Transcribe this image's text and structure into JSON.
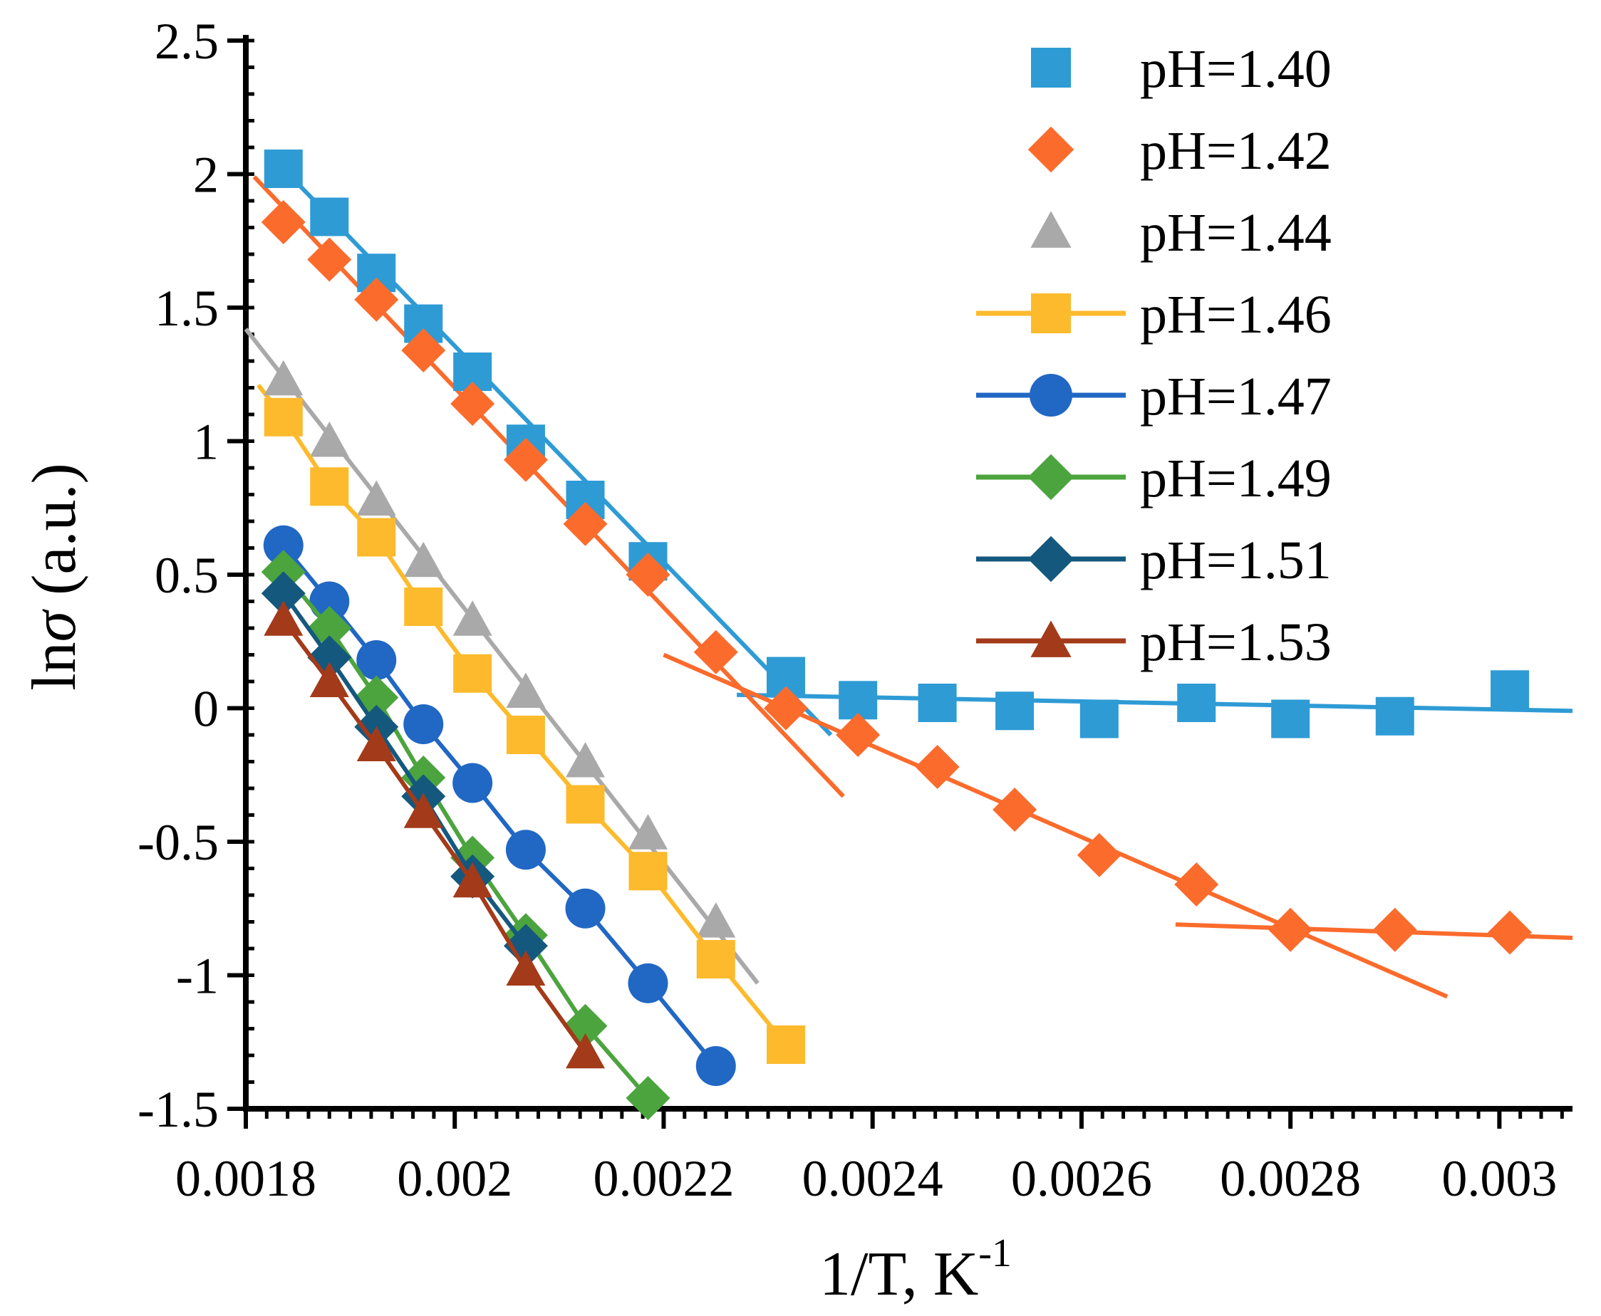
{
  "chart_data": {
    "type": "scatter",
    "xlabel": "1/T, K",
    "xlabel_sup": "-1",
    "ylabel_prefix": "ln",
    "ylabel_symbol": "σ",
    "ylabel_suffix": " (a.u.)",
    "xlim": [
      0.0018,
      0.00307
    ],
    "ylim": [
      -1.5,
      2.5
    ],
    "xticks": [
      "0.0018",
      "0.002",
      "0.0022",
      "0.0024",
      "0.0026",
      "0.0028",
      "0.003"
    ],
    "xtick_values": [
      0.0018,
      0.002,
      0.0022,
      0.0024,
      0.0026,
      0.0028,
      0.003
    ],
    "yticks": [
      "2.5",
      "2",
      "1.5",
      "1",
      "0.5",
      "0",
      "-0.5",
      "-1",
      "-1.5"
    ],
    "ytick_values": [
      2.5,
      2.0,
      1.5,
      1.0,
      0.5,
      0.0,
      -0.5,
      -1.0,
      -1.5
    ],
    "grid": false,
    "legend_position": "top-right",
    "series": [
      {
        "name": "pH=1.40",
        "marker": "square",
        "color": "#2E9BD5",
        "connect": false,
        "x": [
          0.001836,
          0.00188,
          0.001925,
          0.00197,
          0.002017,
          0.002068,
          0.002125,
          0.002185,
          0.002317,
          0.002386,
          0.002462,
          0.002536,
          0.002617,
          0.00271,
          0.0028,
          0.0029,
          0.00301
        ],
        "y": [
          2.02,
          1.84,
          1.63,
          1.44,
          1.26,
          0.99,
          0.78,
          0.55,
          0.12,
          0.03,
          0.02,
          -0.01,
          -0.04,
          0.02,
          -0.04,
          -0.03,
          0.07
        ]
      },
      {
        "name": "pH=1.42",
        "marker": "diamond",
        "color": "#FB6B2C",
        "connect": false,
        "x": [
          0.001836,
          0.00188,
          0.001925,
          0.00197,
          0.002017,
          0.002068,
          0.002125,
          0.002185,
          0.00225,
          0.002317,
          0.002386,
          0.002462,
          0.002536,
          0.002617,
          0.00271,
          0.0028,
          0.0029,
          0.00301
        ],
        "y": [
          1.82,
          1.68,
          1.53,
          1.34,
          1.14,
          0.93,
          0.69,
          0.5,
          0.21,
          0.0,
          -0.1,
          -0.22,
          -0.38,
          -0.55,
          -0.66,
          -0.83,
          -0.83,
          -0.84
        ]
      },
      {
        "name": "pH=1.44",
        "marker": "triangle",
        "color": "#A9A9A9",
        "connect": false,
        "x": [
          0.001836,
          0.00188,
          0.001925,
          0.00197,
          0.002017,
          0.002068,
          0.002125,
          0.002185,
          0.00225
        ],
        "y": [
          1.23,
          1.0,
          0.78,
          0.55,
          0.33,
          0.06,
          -0.2,
          -0.47,
          -0.8
        ]
      },
      {
        "name": "pH=1.46",
        "marker": "square",
        "color": "#FDBA2C",
        "connect": true,
        "x": [
          0.001836,
          0.00188,
          0.001925,
          0.00197,
          0.002017,
          0.002068,
          0.002125,
          0.002185,
          0.00225,
          0.002317
        ],
        "y": [
          1.09,
          0.83,
          0.64,
          0.38,
          0.13,
          -0.1,
          -0.36,
          -0.61,
          -0.94,
          -1.26
        ]
      },
      {
        "name": "pH=1.47",
        "marker": "circle",
        "color": "#2167C4",
        "connect": true,
        "x": [
          0.001836,
          0.00188,
          0.001925,
          0.00197,
          0.002017,
          0.002068,
          0.002125,
          0.002185,
          0.00225
        ],
        "y": [
          0.61,
          0.4,
          0.18,
          -0.06,
          -0.28,
          -0.53,
          -0.75,
          -1.03,
          -1.34
        ]
      },
      {
        "name": "pH=1.49",
        "marker": "diamond",
        "color": "#4CA43E",
        "connect": true,
        "x": [
          0.001836,
          0.00188,
          0.001925,
          0.00197,
          0.002017,
          0.002068,
          0.002125,
          0.002185
        ],
        "y": [
          0.51,
          0.3,
          0.04,
          -0.26,
          -0.56,
          -0.85,
          -1.19,
          -1.46
        ]
      },
      {
        "name": "pH=1.51",
        "marker": "diamond",
        "color": "#15587E",
        "connect": true,
        "x": [
          0.001836,
          0.00188,
          0.001925,
          0.00197,
          0.002017,
          0.002068
        ],
        "y": [
          0.43,
          0.19,
          -0.07,
          -0.33,
          -0.63,
          -0.89
        ]
      },
      {
        "name": "pH=1.53",
        "marker": "triangle",
        "color": "#A33A1A",
        "connect": true,
        "x": [
          0.001836,
          0.00188,
          0.001925,
          0.00197,
          0.002017,
          0.002068,
          0.002125
        ],
        "y": [
          0.33,
          0.1,
          -0.14,
          -0.39,
          -0.65,
          -0.98,
          -1.29
        ]
      }
    ],
    "fit_lines": [
      {
        "series": "pH=1.40",
        "color": "#2E9BD5",
        "x": [
          0.001836,
          0.00236
        ],
        "y": [
          2.02,
          -0.1
        ]
      },
      {
        "series": "pH=1.40",
        "color": "#2E9BD5",
        "x": [
          0.00227,
          0.00307
        ],
        "y": [
          0.05,
          -0.01
        ]
      },
      {
        "series": "pH=1.42",
        "color": "#FB6B2C",
        "x": [
          0.001808,
          0.002372
        ],
        "y": [
          1.99,
          -0.33
        ]
      },
      {
        "series": "pH=1.42",
        "color": "#FB6B2C",
        "x": [
          0.0022,
          0.00295
        ],
        "y": [
          0.2,
          -1.08
        ]
      },
      {
        "series": "pH=1.42",
        "color": "#FB6B2C",
        "x": [
          0.00269,
          0.00307
        ],
        "y": [
          -0.81,
          -0.86
        ]
      },
      {
        "series": "pH=1.44",
        "color": "#A9A9A9",
        "x": [
          0.0018,
          0.00229
        ],
        "y": [
          1.42,
          -1.03
        ]
      },
      {
        "series": "pH=1.46",
        "color": "#FDBA2C",
        "x": [
          0.001812,
          0.001836
        ],
        "y": [
          1.21,
          1.09
        ]
      }
    ]
  }
}
